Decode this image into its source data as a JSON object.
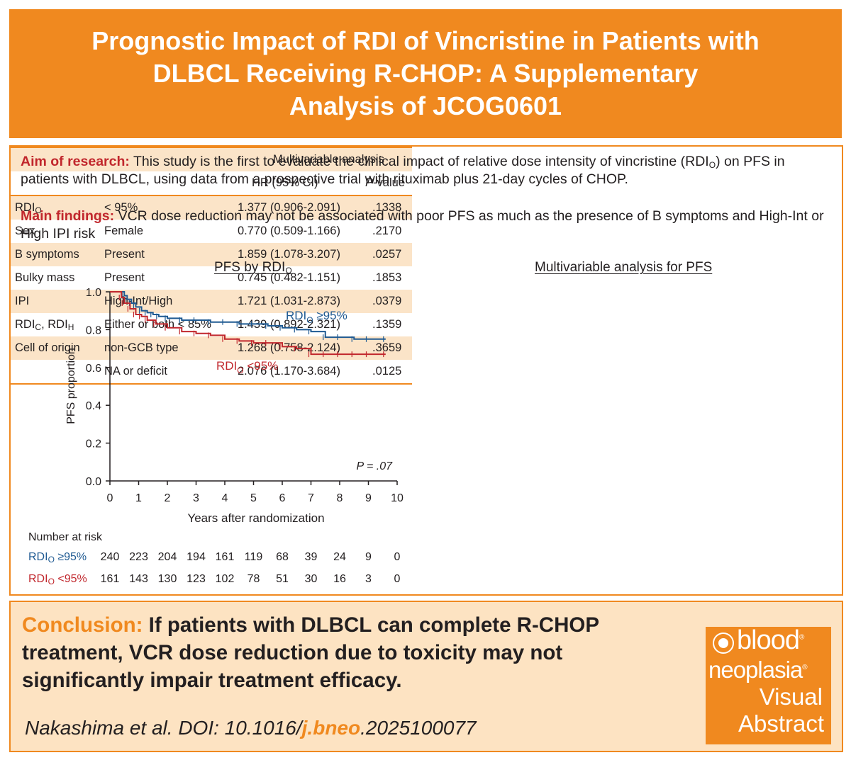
{
  "header": {
    "title_line1": "Prognostic Impact of RDI of Vincristine in Patients with",
    "title_line2": "DLBCL Receiving R-CHOP: A Supplementary",
    "title_line3": "Analysis of JCOG0601"
  },
  "aim": {
    "label": "Aim of research:",
    "text_a": " This study is the first to evaluate the clinical impact of relative dose intensity of vincristine (RDI",
    "sub": "O",
    "text_b": ") on PFS in patients with DLBCL, using data from a prospective trial with rituximab plus 21-day cycles of CHOP."
  },
  "findings": {
    "label": "Main findings:",
    "text": " VCR dose reduction may not be associated with poor PFS as much as the presence of B symptoms and High-Int or High IPI risk"
  },
  "chart_title": {
    "main": "PFS by RDI",
    "sub": "O"
  },
  "chart_data": {
    "type": "line",
    "title": "PFS by RDIO",
    "xlabel": "Years after randomization",
    "ylabel": "PFS proportion",
    "xlim": [
      0,
      10
    ],
    "ylim": [
      0,
      1.0
    ],
    "x_ticks": [
      "0",
      "1",
      "2",
      "3",
      "4",
      "5",
      "6",
      "7",
      "8",
      "9",
      "10"
    ],
    "y_ticks": [
      "0.0",
      "0.2",
      "0.4",
      "0.6",
      "0.8",
      "1.0"
    ],
    "grid": false,
    "annotation": "P = .07",
    "series": [
      {
        "name": "RDIO ≥95%",
        "color": "#1f5a92",
        "x": [
          0,
          0.3,
          0.5,
          0.6,
          0.75,
          0.9,
          1.1,
          1.3,
          1.5,
          1.7,
          2.0,
          2.5,
          3.0,
          3.5,
          4.0,
          4.5,
          5.0,
          5.5,
          6.0,
          6.5,
          7.0,
          7.5,
          8.0,
          8.5,
          9.0,
          9.6
        ],
        "y": [
          1.0,
          1.0,
          0.98,
          0.96,
          0.94,
          0.92,
          0.9,
          0.89,
          0.88,
          0.87,
          0.86,
          0.85,
          0.85,
          0.84,
          0.84,
          0.83,
          0.83,
          0.82,
          0.81,
          0.8,
          0.79,
          0.76,
          0.76,
          0.75,
          0.75,
          0.75
        ]
      },
      {
        "name": "RDIO <95%",
        "color": "#c1272d",
        "x": [
          0,
          0.3,
          0.4,
          0.5,
          0.7,
          0.9,
          1.1,
          1.3,
          1.6,
          2.0,
          2.5,
          3.0,
          3.5,
          4.0,
          4.5,
          5.0,
          5.5,
          6.0,
          6.5,
          7.0,
          7.5,
          8.0,
          8.5,
          9.0,
          9.6
        ],
        "y": [
          1.0,
          1.0,
          0.97,
          0.94,
          0.91,
          0.88,
          0.87,
          0.85,
          0.83,
          0.81,
          0.79,
          0.78,
          0.77,
          0.75,
          0.74,
          0.73,
          0.73,
          0.71,
          0.7,
          0.67,
          0.67,
          0.67,
          0.67,
          0.67,
          0.67
        ]
      }
    ],
    "labels": [
      {
        "text": "RDI",
        "sub": "O",
        "rest": " ≥95%",
        "color": "#1f5a92"
      },
      {
        "text": "RDI",
        "sub": "O",
        "rest": " <95%",
        "color": "#c1272d"
      }
    ]
  },
  "risk": {
    "title": "Number at risk",
    "rows": [
      {
        "label": "RDI",
        "sub": "O",
        "rest": " ≥95%",
        "color": "#1f5a92",
        "values": [
          "240",
          "223",
          "204",
          "194",
          "161",
          "119",
          "68",
          "39",
          "24",
          "9",
          "0"
        ]
      },
      {
        "label": "RDI",
        "sub": "O",
        "rest": " <95%",
        "color": "#c1272d",
        "values": [
          "161",
          "143",
          "130",
          "123",
          "102",
          "78",
          "51",
          "30",
          "16",
          "3",
          "0"
        ]
      }
    ]
  },
  "table_title": "Multivariable analysis for PFS",
  "table": {
    "group_header": "Multivariable analysis",
    "col_hr": "HR (95% CI)",
    "col_p_italic": "P",
    "col_p_rest": "-value",
    "rows": [
      {
        "factor": "RDI",
        "factor_sub": "O",
        "level": "< 95%",
        "hr": "1.377 (0.906-2.091)",
        "p": ".1338"
      },
      {
        "factor": "Sex",
        "level": "Female",
        "hr": "0.770 (0.509-1.166)",
        "p": ".2170"
      },
      {
        "factor": "B symptoms",
        "level": "Present",
        "hr": "1.859 (1.078-3.207)",
        "p": ".0257"
      },
      {
        "factor": "Bulky mass",
        "level": "Present",
        "hr": "0.745 (0.482-1.151)",
        "p": ".1853"
      },
      {
        "factor": "IPI",
        "level": "High-Int/High",
        "hr": "1.721 (1.031-2.873)",
        "p": ".0379"
      },
      {
        "factor": "RDI",
        "factor_sub": "C",
        "factor_mid": ", RDI",
        "factor_sub2": "H",
        "level": "Either or both < 85%",
        "hr": "1.439 (0.892-2.321)",
        "p": ".1359"
      },
      {
        "factor": "Cell of origin",
        "level": "non-GCB type",
        "hr": "1.268 (0.758-2.124)",
        "p": ".3659"
      },
      {
        "factor": "",
        "level": "NA or deficit",
        "hr": "2.076 (1.170-3.684)",
        "p": ".0125"
      }
    ]
  },
  "conclusion": {
    "label": "Conclusion:",
    "text": " If patients with DLBCL can complete R-CHOP treatment, VCR dose reduction due to toxicity may not significantly impair treatment efficacy."
  },
  "citation": {
    "a": "Nakashima et al. DOI: 10.1016/",
    "j": "j.bneo",
    "b": ".2025100077"
  },
  "logo": {
    "word1": "blood",
    "word2": "neoplasia",
    "word3": "Visual",
    "word4": "Abstract",
    "reg": "®"
  },
  "colors": {
    "orange": "#f0891f",
    "light_orange": "#fde3c2",
    "blue": "#1f5a92",
    "red": "#c1272d"
  }
}
